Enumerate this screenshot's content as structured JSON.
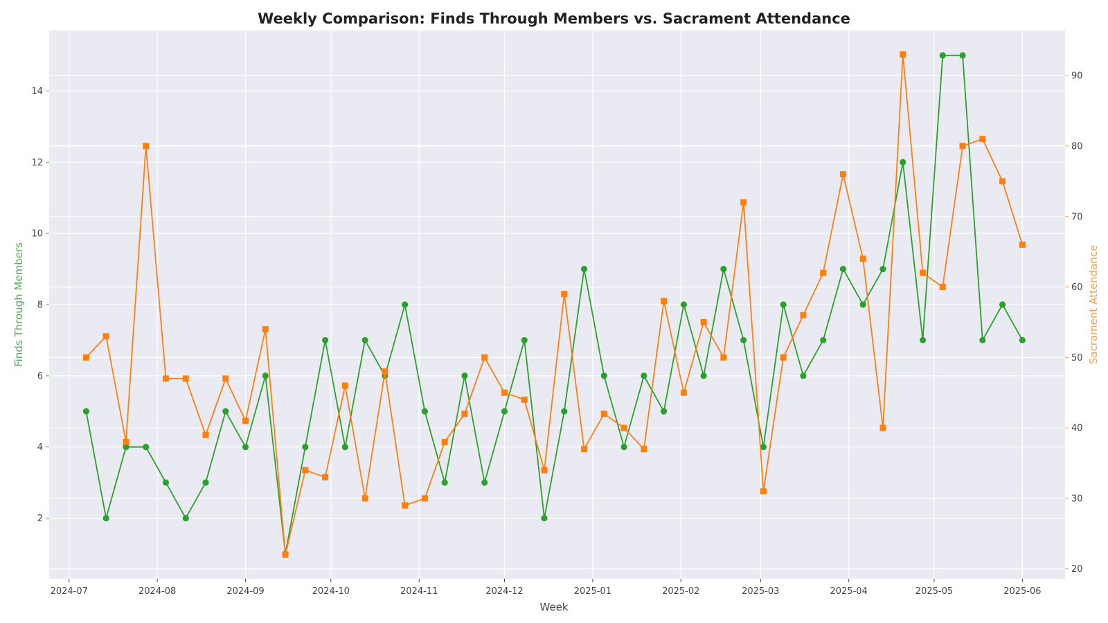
{
  "chart_data": {
    "type": "line",
    "title": "Weekly Comparison: Finds Through Members vs. Sacrament Attendance",
    "xlabel": "Week",
    "ylabel_left": "Finds Through Members",
    "ylabel_right": "Sacrament Attendance",
    "grid": true,
    "colors": {
      "background": "#eaeaf2",
      "grid": "#ffffff",
      "finds": "#2ca02c",
      "attendance": "#ff7f0e",
      "left_axis": "#4caf50",
      "right_axis": "#f5a050"
    },
    "x_ticks": [
      "2024-07",
      "2024-08",
      "2024-09",
      "2024-10",
      "2024-11",
      "2024-12",
      "2025-01",
      "2025-02",
      "2025-03",
      "2025-04",
      "2025-05",
      "2025-06"
    ],
    "x_range": [
      "2024-06-24",
      "2025-06-16"
    ],
    "y_left_range": [
      0.3,
      15.7
    ],
    "y_left_ticks": [
      2,
      4,
      6,
      8,
      10,
      12,
      14
    ],
    "y_right_range": [
      18.6,
      96.4
    ],
    "y_right_ticks": [
      20,
      30,
      40,
      50,
      60,
      70,
      80,
      90
    ],
    "x": [
      "2024-07-07",
      "2024-07-14",
      "2024-07-21",
      "2024-07-28",
      "2024-08-04",
      "2024-08-11",
      "2024-08-18",
      "2024-08-25",
      "2024-09-01",
      "2024-09-08",
      "2024-09-15",
      "2024-09-22",
      "2024-09-29",
      "2024-10-06",
      "2024-10-13",
      "2024-10-20",
      "2024-10-27",
      "2024-11-03",
      "2024-11-10",
      "2024-11-17",
      "2024-11-24",
      "2024-12-01",
      "2024-12-08",
      "2024-12-15",
      "2024-12-22",
      "2024-12-29",
      "2025-01-05",
      "2025-01-12",
      "2025-01-19",
      "2025-01-26",
      "2025-02-02",
      "2025-02-09",
      "2025-02-16",
      "2025-02-23",
      "2025-03-02",
      "2025-03-09",
      "2025-03-16",
      "2025-03-23",
      "2025-03-30",
      "2025-04-06",
      "2025-04-13",
      "2025-04-20",
      "2025-04-27",
      "2025-05-04",
      "2025-05-11",
      "2025-05-18",
      "2025-05-25",
      "2025-06-01"
    ],
    "series": [
      {
        "name": "Finds Through Members",
        "axis": "left",
        "marker": "circle",
        "values": [
          5,
          2,
          4,
          4,
          3,
          2,
          3,
          5,
          4,
          6,
          1,
          4,
          7,
          4,
          7,
          6,
          8,
          5,
          3,
          6,
          3,
          5,
          7,
          2,
          5,
          9,
          6,
          4,
          6,
          5,
          8,
          6,
          9,
          7,
          4,
          8,
          6,
          7,
          9,
          8,
          9,
          12,
          7,
          15,
          15,
          7,
          8,
          7
        ]
      },
      {
        "name": "Sacrament Attendance",
        "axis": "right",
        "marker": "square",
        "values": [
          50,
          53,
          38,
          80,
          47,
          47,
          39,
          47,
          41,
          54,
          22,
          34,
          33,
          46,
          30,
          48,
          29,
          30,
          38,
          42,
          50,
          45,
          44,
          34,
          59,
          37,
          42,
          40,
          37,
          58,
          45,
          55,
          50,
          72,
          31,
          50,
          56,
          62,
          76,
          64,
          40,
          93,
          62,
          60,
          80,
          81,
          75,
          66
        ]
      }
    ]
  }
}
